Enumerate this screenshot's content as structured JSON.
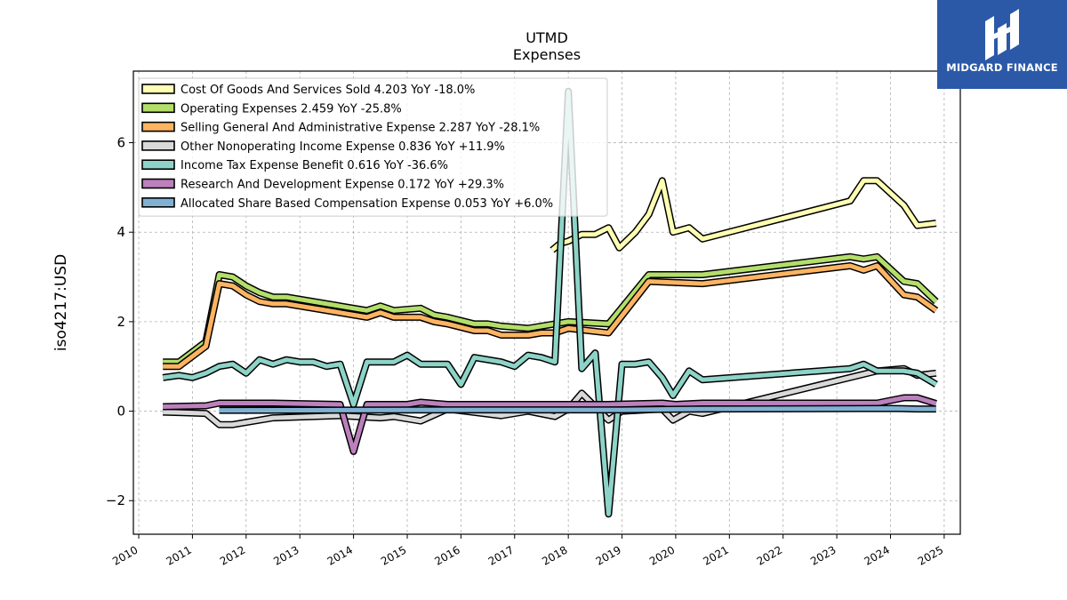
{
  "chart_data": {
    "type": "line",
    "title": "UTMD",
    "subtitle": "Expenses",
    "ylabel": "iso4217:USD",
    "xlabel": "",
    "xlim": [
      2009.9,
      2025.3
    ],
    "ylim": [
      -2.75,
      7.6
    ],
    "yticks": [
      -2,
      0,
      2,
      4,
      6
    ],
    "ytick_labels": [
      "−2",
      "0",
      "2",
      "4",
      "6"
    ],
    "xticks": [
      2010,
      2011,
      2012,
      2013,
      2014,
      2015,
      2016,
      2017,
      2018,
      2019,
      2020,
      2021,
      2022,
      2023,
      2024,
      2025
    ],
    "grid": true,
    "legend_position": "top-left",
    "series": [
      {
        "name": "Cost Of Goods And Services Sold",
        "legend_label": "Cost Of Goods And Services Sold  4.203 YoY -18.0%",
        "color": "#ffffb3",
        "points": [
          [
            2017.7,
            3.6
          ],
          [
            2017.85,
            3.75
          ],
          [
            2018.0,
            3.8
          ],
          [
            2018.25,
            3.95
          ],
          [
            2018.5,
            3.95
          ],
          [
            2018.75,
            4.1
          ],
          [
            2018.95,
            3.65
          ],
          [
            2019.25,
            4.0
          ],
          [
            2019.5,
            4.4
          ],
          [
            2019.75,
            5.15
          ],
          [
            2019.95,
            4.0
          ],
          [
            2020.25,
            4.1
          ],
          [
            2020.5,
            3.85
          ],
          [
            2023.25,
            4.7
          ],
          [
            2023.5,
            5.15
          ],
          [
            2023.75,
            5.15
          ],
          [
            2024.25,
            4.6
          ],
          [
            2024.5,
            4.15
          ],
          [
            2024.85,
            4.2
          ]
        ]
      },
      {
        "name": "Operating Expenses",
        "legend_label": "Operating Expenses  2.459 YoY -25.8%",
        "color": "#b3de69",
        "points": [
          [
            2010.45,
            1.1
          ],
          [
            2010.75,
            1.1
          ],
          [
            2011.25,
            1.55
          ],
          [
            2011.5,
            3.05
          ],
          [
            2011.75,
            3.0
          ],
          [
            2012.0,
            2.8
          ],
          [
            2012.25,
            2.65
          ],
          [
            2012.5,
            2.55
          ],
          [
            2012.75,
            2.55
          ],
          [
            2013.75,
            2.35
          ],
          [
            2014.25,
            2.25
          ],
          [
            2014.5,
            2.35
          ],
          [
            2014.75,
            2.25
          ],
          [
            2015.25,
            2.3
          ],
          [
            2015.5,
            2.15
          ],
          [
            2015.75,
            2.1
          ],
          [
            2016.25,
            1.95
          ],
          [
            2016.5,
            1.95
          ],
          [
            2016.75,
            1.9
          ],
          [
            2017.25,
            1.85
          ],
          [
            2017.5,
            1.9
          ],
          [
            2017.75,
            1.95
          ],
          [
            2018.0,
            2.0
          ],
          [
            2018.75,
            1.95
          ],
          [
            2019.5,
            3.05
          ],
          [
            2020.5,
            3.05
          ],
          [
            2023.25,
            3.45
          ],
          [
            2023.5,
            3.4
          ],
          [
            2023.75,
            3.45
          ],
          [
            2024.25,
            2.9
          ],
          [
            2024.5,
            2.85
          ],
          [
            2024.85,
            2.45
          ]
        ]
      },
      {
        "name": "Selling General And Administrative Expense",
        "legend_label": "Selling General And Administrative Expense  2.287 YoY -28.1%",
        "color": "#fdb462",
        "points": [
          [
            2010.45,
            1.0
          ],
          [
            2010.75,
            1.0
          ],
          [
            2011.25,
            1.45
          ],
          [
            2011.5,
            2.85
          ],
          [
            2011.75,
            2.8
          ],
          [
            2012.0,
            2.6
          ],
          [
            2012.25,
            2.45
          ],
          [
            2012.5,
            2.4
          ],
          [
            2012.75,
            2.4
          ],
          [
            2013.75,
            2.2
          ],
          [
            2014.25,
            2.1
          ],
          [
            2014.5,
            2.2
          ],
          [
            2014.75,
            2.1
          ],
          [
            2015.25,
            2.1
          ],
          [
            2015.5,
            2.0
          ],
          [
            2015.75,
            1.95
          ],
          [
            2016.25,
            1.8
          ],
          [
            2016.5,
            1.8
          ],
          [
            2016.75,
            1.7
          ],
          [
            2017.25,
            1.7
          ],
          [
            2017.5,
            1.75
          ],
          [
            2017.75,
            1.75
          ],
          [
            2018.0,
            1.85
          ],
          [
            2018.75,
            1.75
          ],
          [
            2019.5,
            2.9
          ],
          [
            2020.5,
            2.85
          ],
          [
            2023.25,
            3.25
          ],
          [
            2023.5,
            3.15
          ],
          [
            2023.75,
            3.25
          ],
          [
            2024.25,
            2.6
          ],
          [
            2024.5,
            2.55
          ],
          [
            2024.85,
            2.25
          ]
        ]
      },
      {
        "name": "Other Nonoperating Income Expense",
        "legend_label": "Other Nonoperating Income Expense  0.836 YoY +11.9%",
        "color": "#d9d9d9",
        "points": [
          [
            2010.45,
            -0.02
          ],
          [
            2010.75,
            -0.03
          ],
          [
            2011.25,
            -0.05
          ],
          [
            2011.5,
            -0.3
          ],
          [
            2011.75,
            -0.3
          ],
          [
            2012.5,
            -0.15
          ],
          [
            2013.75,
            -0.1
          ],
          [
            2014.5,
            -0.15
          ],
          [
            2014.75,
            -0.12
          ],
          [
            2015.25,
            -0.22
          ],
          [
            2015.75,
            0.05
          ],
          [
            2016.75,
            -0.1
          ],
          [
            2017.25,
            0.0
          ],
          [
            2017.75,
            -0.12
          ],
          [
            2018.0,
            0.05
          ],
          [
            2018.25,
            0.4
          ],
          [
            2018.5,
            0.1
          ],
          [
            2018.75,
            -0.2
          ],
          [
            2019.0,
            0.0
          ],
          [
            2019.75,
            0.05
          ],
          [
            2019.95,
            -0.2
          ],
          [
            2020.25,
            0.0
          ],
          [
            2020.5,
            -0.05
          ],
          [
            2023.75,
            0.9
          ],
          [
            2024.25,
            0.95
          ],
          [
            2024.5,
            0.8
          ],
          [
            2024.85,
            0.85
          ]
        ]
      },
      {
        "name": "Income Tax Expense Benefit",
        "legend_label": "Income Tax Expense Benefit  0.616 YoY -36.6%",
        "color": "#8dd3c7",
        "points": [
          [
            2010.45,
            0.75
          ],
          [
            2010.75,
            0.8
          ],
          [
            2011.0,
            0.75
          ],
          [
            2011.25,
            0.85
          ],
          [
            2011.5,
            1.0
          ],
          [
            2011.75,
            1.05
          ],
          [
            2012.0,
            0.85
          ],
          [
            2012.25,
            1.15
          ],
          [
            2012.5,
            1.05
          ],
          [
            2012.75,
            1.15
          ],
          [
            2013.0,
            1.1
          ],
          [
            2013.25,
            1.1
          ],
          [
            2013.5,
            1.0
          ],
          [
            2013.75,
            1.05
          ],
          [
            2014.0,
            0.15
          ],
          [
            2014.25,
            1.1
          ],
          [
            2014.5,
            1.1
          ],
          [
            2014.75,
            1.1
          ],
          [
            2015.0,
            1.25
          ],
          [
            2015.25,
            1.05
          ],
          [
            2015.5,
            1.05
          ],
          [
            2015.75,
            1.05
          ],
          [
            2016.0,
            0.6
          ],
          [
            2016.25,
            1.2
          ],
          [
            2016.5,
            1.15
          ],
          [
            2016.75,
            1.1
          ],
          [
            2017.0,
            1.0
          ],
          [
            2017.25,
            1.25
          ],
          [
            2017.5,
            1.2
          ],
          [
            2017.75,
            1.1
          ],
          [
            2018.0,
            7.15
          ],
          [
            2018.25,
            0.95
          ],
          [
            2018.5,
            1.3
          ],
          [
            2018.75,
            -2.3
          ],
          [
            2019.0,
            1.05
          ],
          [
            2019.25,
            1.05
          ],
          [
            2019.5,
            1.1
          ],
          [
            2019.75,
            0.75
          ],
          [
            2019.95,
            0.35
          ],
          [
            2020.25,
            0.9
          ],
          [
            2020.5,
            0.7
          ],
          [
            2023.25,
            0.95
          ],
          [
            2023.5,
            1.05
          ],
          [
            2023.75,
            0.9
          ],
          [
            2024.25,
            0.9
          ],
          [
            2024.5,
            0.85
          ],
          [
            2024.85,
            0.6
          ]
        ]
      },
      {
        "name": "Research And Development Expense",
        "legend_label": "Research And Development Expense  0.172 YoY +29.3%",
        "color": "#bc80bd",
        "points": [
          [
            2010.45,
            0.1
          ],
          [
            2011.25,
            0.12
          ],
          [
            2011.5,
            0.18
          ],
          [
            2012.5,
            0.18
          ],
          [
            2013.75,
            0.15
          ],
          [
            2014.0,
            -0.9
          ],
          [
            2014.25,
            0.15
          ],
          [
            2015.0,
            0.15
          ],
          [
            2015.25,
            0.2
          ],
          [
            2015.75,
            0.15
          ],
          [
            2016.75,
            0.15
          ],
          [
            2017.75,
            0.15
          ],
          [
            2018.75,
            0.15
          ],
          [
            2019.75,
            0.18
          ],
          [
            2020.0,
            0.15
          ],
          [
            2020.5,
            0.18
          ],
          [
            2023.75,
            0.18
          ],
          [
            2024.25,
            0.3
          ],
          [
            2024.5,
            0.3
          ],
          [
            2024.85,
            0.17
          ]
        ]
      },
      {
        "name": "Allocated Share Based Compensation Expense",
        "legend_label": "Allocated Share Based Compensation Expense  0.053 YoY +6.0%",
        "color": "#80b1d3",
        "points": [
          [
            2011.5,
            0.02
          ],
          [
            2015.75,
            0.03
          ],
          [
            2018.25,
            0.03
          ],
          [
            2019.0,
            0.03
          ],
          [
            2020.5,
            0.05
          ],
          [
            2024.0,
            0.06
          ],
          [
            2024.5,
            0.05
          ],
          [
            2024.85,
            0.05
          ]
        ]
      }
    ]
  },
  "brand": {
    "name": "MIDGARD FINANCE",
    "background": "#2b59a8"
  }
}
